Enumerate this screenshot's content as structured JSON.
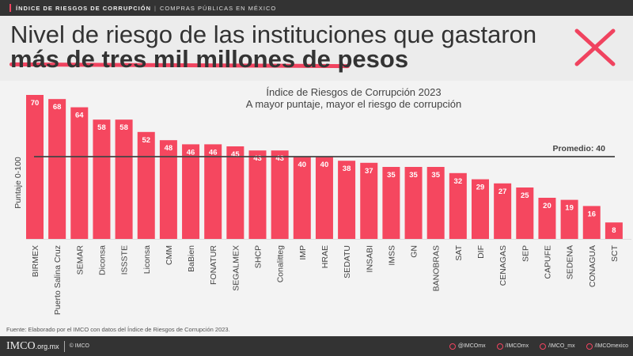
{
  "topbar": {
    "section": "ÍNDICE DE RIESGOS DE CORRUPCIÓN",
    "subsection": "COMPRAS PÚBLICAS EN MÉXICO"
  },
  "header": {
    "title_line1": "Nivel de riesgo de las instituciones que gastaron",
    "title_line2": "más de tres mil millones de pesos",
    "icon": "x-mark-icon",
    "accent": "#f0435f"
  },
  "chart_data": {
    "type": "bar",
    "title": "Índice de Riesgos de Corrupción 2023",
    "subtitle": "A mayor puntaje, mayor el riesgo de corrupción",
    "ylabel": "Puntaje  0-100",
    "xlabel": "",
    "ylim": [
      0,
      100
    ],
    "grid": false,
    "bar_color": "#f5475f",
    "categories": [
      "BIRMEX",
      "Puerto Salina Cruz",
      "SEMAR",
      "Diconsa",
      "ISSSTE",
      "Liconsa",
      "CMM",
      "BaBien",
      "FONATUR",
      "SEGALMEX",
      "SHCP",
      "Conalitteg",
      "IMP",
      "HRAE",
      "SEDATU",
      "INSABI",
      "IMSS",
      "GN",
      "BANOBRAS",
      "SAT",
      "DIF",
      "CENAGAS",
      "SEP",
      "CAPUFE",
      "SEDENA",
      "CONAGUA",
      "SCT"
    ],
    "values": [
      70,
      68,
      64,
      58,
      58,
      52,
      48,
      46,
      46,
      45,
      43,
      43,
      40,
      40,
      38,
      37,
      35,
      35,
      35,
      32,
      29,
      27,
      25,
      20,
      19,
      16,
      8
    ],
    "reference_line": {
      "label": "Promedio:  40",
      "value": 40
    }
  },
  "source": "Fuente: Elaborado por el IMCO con datos del Índice de Riesgos de Corrupción 2023.",
  "footer": {
    "logo": "IMCO",
    "domain": ".org.mx",
    "copyright": "© IMCO",
    "socials": [
      {
        "icon": "twitter-icon",
        "label": "@IMCOmx"
      },
      {
        "icon": "facebook-icon",
        "label": "/IMCOmx"
      },
      {
        "icon": "instagram-icon",
        "label": "/IMCO_mx"
      },
      {
        "icon": "youtube-icon",
        "label": "/IMCOmexico"
      }
    ]
  }
}
